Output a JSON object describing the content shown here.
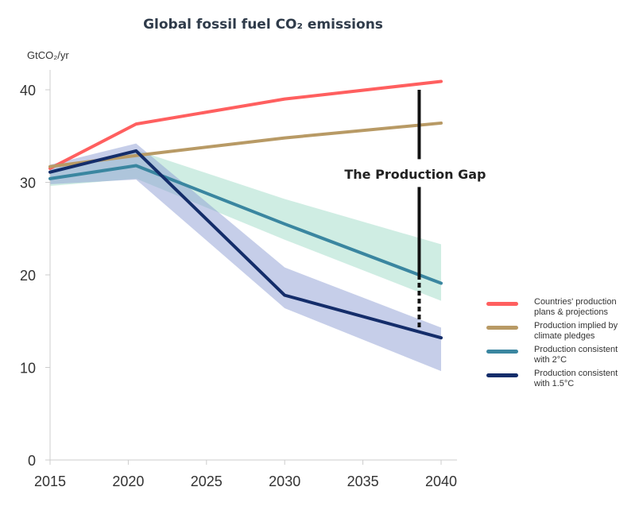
{
  "chart_data": {
    "type": "line",
    "title": "Global fossil fuel CO₂ emissions",
    "ylabel": "GtCO₂/yr",
    "xlim": [
      2015,
      2040
    ],
    "ylim": [
      0,
      42
    ],
    "xticks": [
      2015,
      2020,
      2025,
      2030,
      2035,
      2040
    ],
    "yticks": [
      0,
      10,
      20,
      30,
      40
    ],
    "grid": false,
    "legend_placement": "right",
    "series": [
      {
        "name": "Countries' production plans & projections",
        "color": "#ff5f5f",
        "x": [
          2015,
          2020.5,
          2030,
          2040
        ],
        "values": [
          31.5,
          36.3,
          39.0,
          40.9
        ]
      },
      {
        "name": "Production implied by climate pledges",
        "color": "#b89a65",
        "x": [
          2015,
          2020.5,
          2030,
          2040
        ],
        "values": [
          31.7,
          32.9,
          34.8,
          36.4
        ]
      },
      {
        "name": "Production consistent with 2°C",
        "color": "#3a86a0",
        "band_color": "#9fdcc8",
        "x": [
          2015,
          2020.5,
          2030,
          2040
        ],
        "values": [
          30.4,
          31.8,
          25.5,
          19.1
        ],
        "lower": [
          29.6,
          30.4,
          23.8,
          17.2
        ],
        "upper": [
          31.4,
          33.5,
          28.2,
          23.3
        ]
      },
      {
        "name": "Production consistent with 1.5°C",
        "color": "#142d6a",
        "band_color": "#8e9ed4",
        "x": [
          2015,
          2020.5,
          2030,
          2040
        ],
        "values": [
          31.1,
          33.4,
          17.8,
          13.2
        ],
        "lower": [
          29.8,
          30.3,
          16.4,
          9.6
        ],
        "upper": [
          31.9,
          34.2,
          20.8,
          14.3
        ]
      }
    ],
    "annotation": {
      "text": "The Production Gap",
      "x": 2038.6,
      "from": 40,
      "to": 14.2
    }
  },
  "legend": [
    {
      "label": "Countries' production\nplans & projections"
    },
    {
      "label": "Production implied by\nclimate pledges"
    },
    {
      "label": "Production consistent\nwith 2°C"
    },
    {
      "label": "Production consistent\nwith 1.5°C"
    }
  ]
}
